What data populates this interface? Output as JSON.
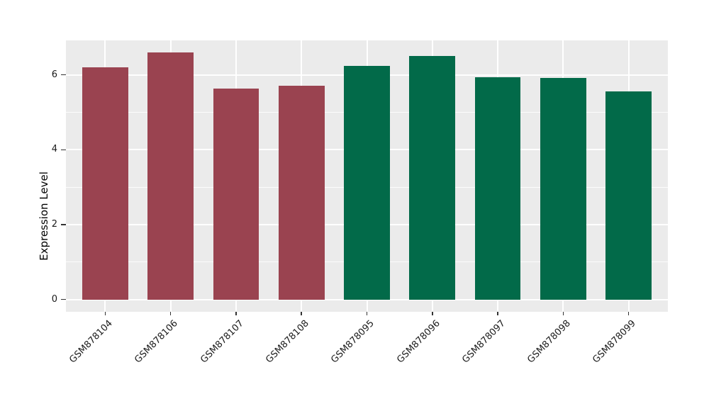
{
  "chart_data": {
    "type": "bar",
    "title": "",
    "xlabel": "",
    "ylabel": "Expression Level",
    "categories": [
      "GSM878104",
      "GSM878106",
      "GSM878107",
      "GSM878108",
      "GSM878095",
      "GSM878096",
      "GSM878097",
      "GSM878098",
      "GSM878099"
    ],
    "values": [
      6.2,
      6.6,
      5.63,
      5.71,
      6.24,
      6.5,
      5.93,
      5.91,
      5.55
    ],
    "bar_colors": [
      "#9A4350",
      "#9A4350",
      "#9A4350",
      "#9A4350",
      "#026A49",
      "#026A49",
      "#026A49",
      "#026A49",
      "#026A49"
    ],
    "groups": [
      {
        "color": "#9A4350",
        "categories": [
          "GSM878104",
          "GSM878106",
          "GSM878107",
          "GSM878108"
        ]
      },
      {
        "color": "#026A49",
        "categories": [
          "GSM878095",
          "GSM878096",
          "GSM878097",
          "GSM878098",
          "GSM878099"
        ]
      }
    ],
    "yticks": [
      0,
      2,
      4,
      6
    ],
    "yminor_ticks": [
      1,
      3,
      5
    ],
    "ylim": [
      -0.33,
      6.92
    ],
    "x_tick_rotation_deg": 45,
    "legend": "none",
    "grid": true,
    "bar_width_fraction": 0.7,
    "panel_background": "#EBEBEB",
    "grid_color": "#FFFFFF",
    "figure_background": "#FFFFFF",
    "axis_text_color": "#1A1A1A",
    "tick_mark_color": "#333333"
  }
}
